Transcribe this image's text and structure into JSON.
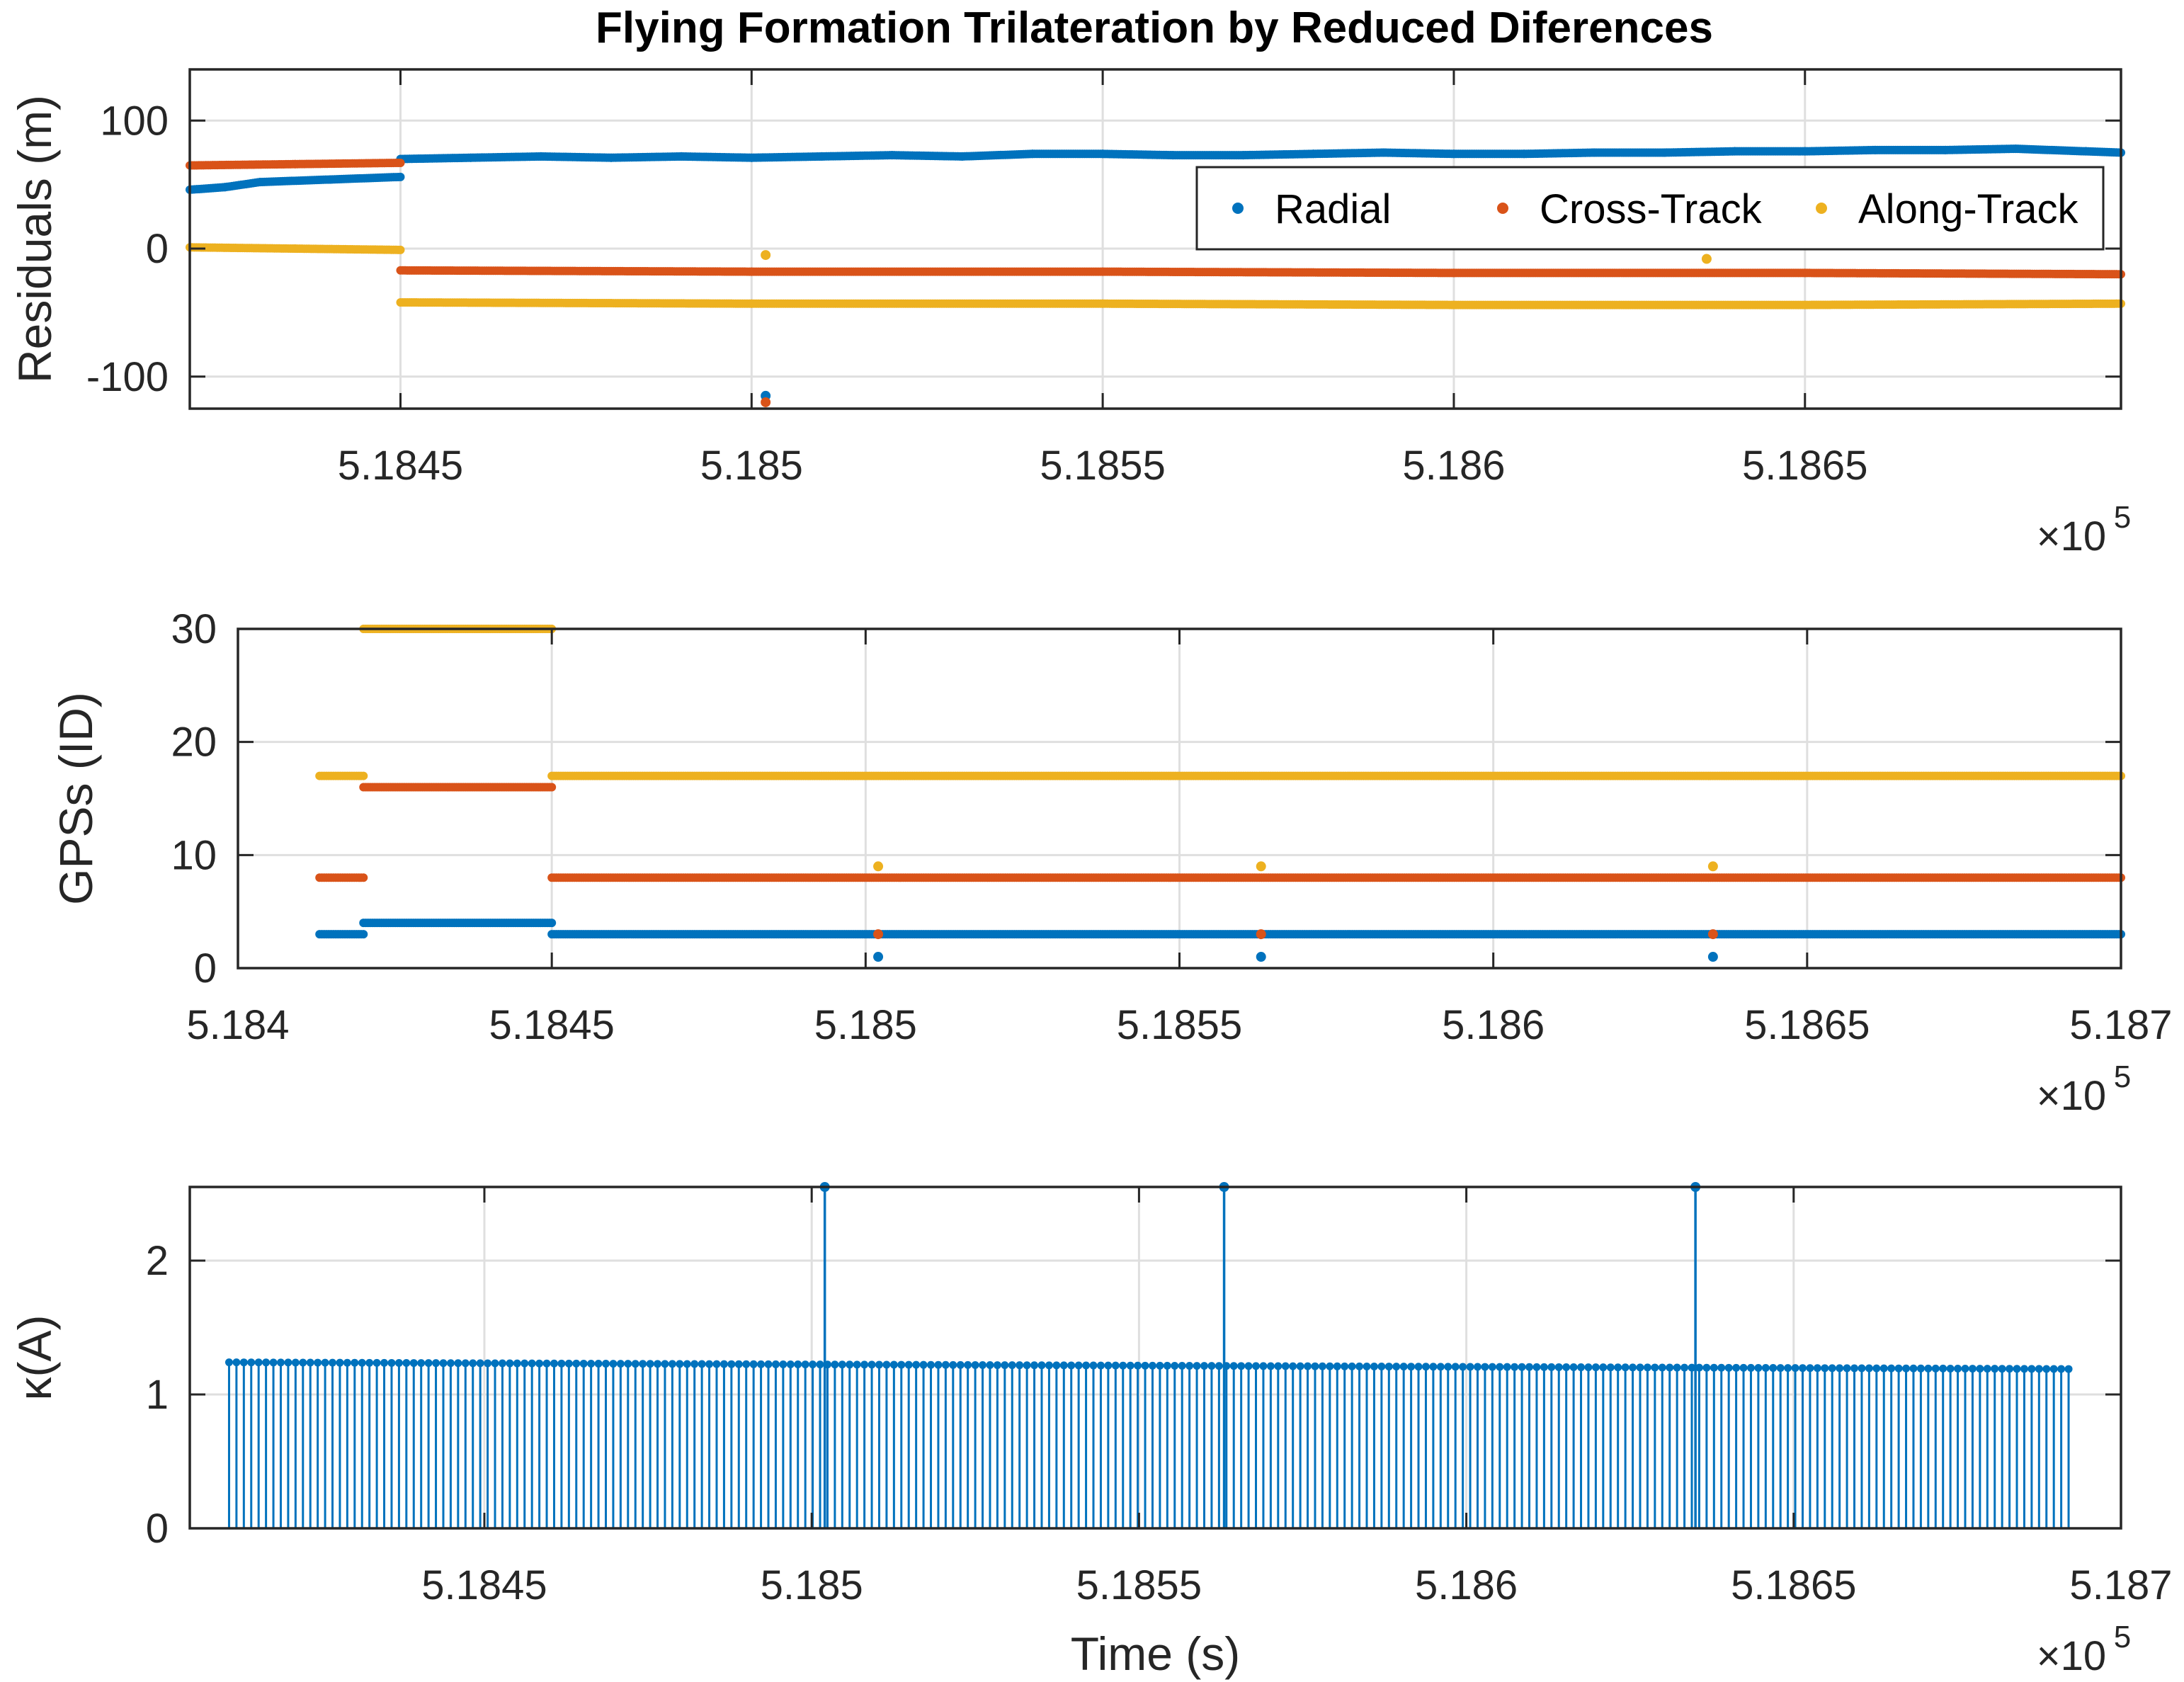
{
  "figure": {
    "title": "Flying Formation Trilateration by Reduced Diferences",
    "colors": {
      "radial": "#0072BD",
      "cross": "#D95319",
      "along": "#EDB120"
    }
  },
  "chart_data": [
    {
      "type": "scatter",
      "ylabel": "Residuals (m)",
      "xlabel": "",
      "xlim": [
        518420,
        518695
      ],
      "ylim": [
        -125,
        140
      ],
      "exponent_label": "×10",
      "exponent_power": "5",
      "xticks": [
        518450,
        518500,
        518550,
        518600,
        518650
      ],
      "xticklabels": [
        "5.1845",
        "5.185",
        "5.1855",
        "5.186",
        "5.1865"
      ],
      "yticks": [
        -100,
        0,
        100
      ],
      "yticklabels": [
        "-100",
        "0",
        "100"
      ],
      "grid": true,
      "legend": {
        "placement": "top-right",
        "orientation": "horizontal",
        "entries": [
          "Radial",
          "Cross-Track",
          "Along-Track"
        ]
      },
      "series": [
        {
          "name": "Radial",
          "color": "#0072BD",
          "segments": [
            {
              "x": [
                518420,
                518425,
                518430,
                518440,
                518450
              ],
              "y": [
                46,
                48,
                52,
                54,
                56
              ]
            },
            {
              "x": [
                518450,
                518460,
                518470,
                518480,
                518490,
                518500,
                518510,
                518520,
                518530,
                518540,
                518550,
                518560,
                518570,
                518580,
                518590,
                518600,
                518610,
                518620,
                518630,
                518640,
                518650,
                518660,
                518670,
                518680,
                518690,
                518695
              ],
              "y": [
                70,
                71,
                72,
                71,
                72,
                71,
                72,
                73,
                72,
                74,
                74,
                73,
                73,
                74,
                75,
                74,
                74,
                75,
                75,
                76,
                76,
                77,
                77,
                78,
                76,
                75
              ]
            }
          ],
          "outliers": [
            {
              "x": 518502,
              "y": -115
            }
          ]
        },
        {
          "name": "Cross-Track",
          "color": "#D95319",
          "segments": [
            {
              "x": [
                518420,
                518435,
                518450
              ],
              "y": [
                65,
                66,
                67
              ]
            },
            {
              "x": [
                518450,
                518500,
                518550,
                518600,
                518650,
                518695
              ],
              "y": [
                -17,
                -18,
                -18,
                -19,
                -19,
                -20
              ]
            }
          ],
          "outliers": [
            {
              "x": 518502,
              "y": -120
            }
          ]
        },
        {
          "name": "Along-Track",
          "color": "#EDB120",
          "segments": [
            {
              "x": [
                518420,
                518435,
                518450
              ],
              "y": [
                1,
                0,
                -1
              ]
            },
            {
              "x": [
                518450,
                518500,
                518550,
                518600,
                518650,
                518695
              ],
              "y": [
                -42,
                -43,
                -43,
                -44,
                -44,
                -43
              ]
            }
          ],
          "outliers": [
            {
              "x": 518502,
              "y": -5
            },
            {
              "x": 518636,
              "y": -8
            }
          ]
        }
      ]
    },
    {
      "type": "scatter",
      "ylabel": "GPSs (ID)",
      "xlabel": "",
      "xlim": [
        518400,
        518700
      ],
      "ylim": [
        0,
        30
      ],
      "exponent_label": "×10",
      "exponent_power": "5",
      "xticks": [
        518400,
        518450,
        518500,
        518550,
        518600,
        518650,
        518700
      ],
      "xticklabels": [
        "5.184",
        "5.1845",
        "5.185",
        "5.1855",
        "5.186",
        "5.1865",
        "5.187"
      ],
      "yticks": [
        0,
        10,
        20,
        30
      ],
      "yticklabels": [
        "0",
        "10",
        "20",
        "30"
      ],
      "grid": true,
      "series": [
        {
          "name": "Radial",
          "color": "#0072BD",
          "segments": [
            {
              "x": [
                518413,
                518420
              ],
              "y": [
                3,
                3
              ]
            },
            {
              "x": [
                518420,
                518450
              ],
              "y": [
                4,
                4
              ]
            },
            {
              "x": [
                518450,
                518700
              ],
              "y": [
                3,
                3
              ]
            }
          ],
          "outliers": [
            {
              "x": 518502,
              "y": 1
            },
            {
              "x": 518563,
              "y": 1
            },
            {
              "x": 518635,
              "y": 1
            }
          ]
        },
        {
          "name": "Cross-Track",
          "color": "#D95319",
          "segments": [
            {
              "x": [
                518413,
                518420
              ],
              "y": [
                8,
                8
              ]
            },
            {
              "x": [
                518420,
                518450
              ],
              "y": [
                16,
                16
              ]
            },
            {
              "x": [
                518450,
                518700
              ],
              "y": [
                8,
                8
              ]
            }
          ],
          "outliers": [
            {
              "x": 518502,
              "y": 3
            },
            {
              "x": 518563,
              "y": 3
            },
            {
              "x": 518635,
              "y": 3
            }
          ]
        },
        {
          "name": "Along-Track",
          "color": "#EDB120",
          "segments": [
            {
              "x": [
                518413,
                518420
              ],
              "y": [
                17,
                17
              ]
            },
            {
              "x": [
                518420,
                518450
              ],
              "y": [
                30,
                30
              ]
            },
            {
              "x": [
                518450,
                518700
              ],
              "y": [
                17,
                17
              ]
            }
          ],
          "outliers": [
            {
              "x": 518502,
              "y": 9
            },
            {
              "x": 518563,
              "y": 9
            },
            {
              "x": 518635,
              "y": 9
            }
          ]
        }
      ]
    },
    {
      "type": "stem",
      "ylabel": "κ(A)",
      "xlabel": "Time (s)",
      "xlim": [
        518405,
        518700
      ],
      "ylim": [
        0,
        2.55
      ],
      "exponent_label": "×10",
      "exponent_power": "5",
      "xticks": [
        518450,
        518500,
        518550,
        518600,
        518650,
        518700
      ],
      "xticklabels": [
        "5.1845",
        "5.185",
        "5.1855",
        "5.186",
        "5.1865",
        "5.187"
      ],
      "yticks": [
        0,
        1,
        2
      ],
      "yticklabels": [
        "0",
        "1",
        "2"
      ],
      "grid": true,
      "series": [
        {
          "name": "κ",
          "color": "#0072BD",
          "x_start": 518411,
          "x_end": 518692,
          "count": 250,
          "y_start": 1.24,
          "y_end": 1.19,
          "spikes": [
            {
              "x": 518502,
              "y": 2.55
            },
            {
              "x": 518563,
              "y": 2.55
            },
            {
              "x": 518635,
              "y": 2.55
            }
          ]
        }
      ]
    }
  ]
}
